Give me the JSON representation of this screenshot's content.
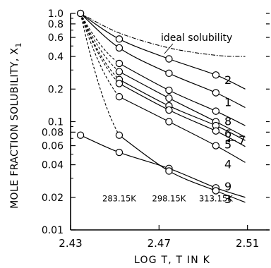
{
  "chart_data": {
    "type": "line",
    "title": "",
    "xlabel": "LOG T, T IN K",
    "ylabel": "MOLE FRACTION SOLUBILITY, X",
    "ylabel_sub": "1",
    "x_scale": "linear",
    "y_scale": "log",
    "xlim": [
      2.43,
      2.52
    ],
    "ylim": [
      0.01,
      1.0
    ],
    "x_ticks": [
      2.43,
      2.47,
      2.51
    ],
    "x_tick_labels": [
      "2.43",
      "2.47",
      "2.51"
    ],
    "y_ticks": [
      1.0,
      0.8,
      0.6,
      0.4,
      0.2,
      0.1,
      0.08,
      0.06,
      0.04,
      0.02,
      0.01
    ],
    "y_tick_labels": [
      "1.0",
      "0.8",
      "0.6",
      "0.4",
      "0.2",
      "0.1",
      "0.08",
      "0.06",
      "0.04",
      "0.02",
      "0.01"
    ],
    "grid": false,
    "annotations": [
      {
        "id": "ideal",
        "text": "ideal solubility"
      },
      {
        "id": "t1",
        "text": "283.15K",
        "x": 2.452,
        "y": 0.0195
      },
      {
        "id": "t2",
        "text": "298.15K",
        "x": 2.4745,
        "y": 0.0195
      },
      {
        "id": "t3",
        "text": "313.15K",
        "x": 2.4957,
        "y": 0.0195
      }
    ],
    "start_point": {
      "x": 2.4345,
      "y": 1.0
    },
    "series": [
      {
        "name": "ideal solubility",
        "style": "dashdot",
        "start": [
          2.4345,
          1.0
        ],
        "end": [
          2.509,
          0.4
        ],
        "points": [
          [
            2.452,
            0.66
          ],
          [
            2.4745,
            0.48
          ],
          [
            2.4957,
            0.41
          ]
        ],
        "markers": false
      },
      {
        "name": "2",
        "style": "solid",
        "label_y": 0.24,
        "start": [
          2.4345,
          1.0
        ],
        "end": [
          2.509,
          0.2
        ],
        "points": [
          [
            2.452,
            0.58
          ],
          [
            2.4745,
            0.38
          ],
          [
            2.4957,
            0.27
          ]
        ],
        "markers": true
      },
      {
        "name": "1",
        "style": "solid",
        "label_y": 0.15,
        "start": [
          2.4345,
          1.0
        ],
        "end": [
          2.509,
          0.135
        ],
        "points": [
          [
            2.452,
            0.48
          ],
          [
            2.4745,
            0.28
          ],
          [
            2.4957,
            0.185
          ]
        ],
        "markers": true
      },
      {
        "name": "8",
        "style": "dashed_solid",
        "label_y": 0.1,
        "start": [
          2.4345,
          1.0
        ],
        "end": [
          2.509,
          0.092
        ],
        "points": [
          [
            2.452,
            0.345
          ],
          [
            2.4745,
            0.195
          ],
          [
            2.4957,
            0.125
          ]
        ],
        "markers": true
      },
      {
        "name": "6",
        "style": "dashed_solid",
        "label_y": 0.077,
        "start": [
          2.4345,
          1.0
        ],
        "end": [
          2.509,
          0.072
        ],
        "points": [
          [
            2.452,
            0.29
          ],
          [
            2.4745,
            0.165
          ],
          [
            2.4957,
            0.1
          ]
        ],
        "markers": true
      },
      {
        "name": "7",
        "style": "dashed_solid",
        "label_y": 0.067,
        "start": [
          2.4345,
          1.0
        ],
        "end": [
          2.509,
          0.067
        ],
        "points": [
          [
            2.452,
            0.245
          ],
          [
            2.4745,
            0.14
          ],
          [
            2.4957,
            0.092
          ]
        ],
        "markers": true
      },
      {
        "name": "5",
        "style": "dashed_solid",
        "label_y": 0.061,
        "start": [
          2.4345,
          1.0
        ],
        "end": [
          2.509,
          0.059
        ],
        "points": [
          [
            2.452,
            0.225
          ],
          [
            2.4745,
            0.128
          ],
          [
            2.4957,
            0.082
          ]
        ],
        "markers": true
      },
      {
        "name": "4",
        "style": "dashed_solid",
        "label_y": 0.04,
        "start": [
          2.4345,
          1.0
        ],
        "end": [
          2.509,
          0.042
        ],
        "points": [
          [
            2.452,
            0.17
          ],
          [
            2.4745,
            0.1
          ],
          [
            2.4957,
            0.06
          ]
        ],
        "markers": true
      },
      {
        "name": "9",
        "style": "solid",
        "label_y": 0.025,
        "start": [
          2.4345,
          0.075
        ],
        "end": [
          2.509,
          0.02
        ],
        "points": [
          [
            2.452,
            0.052
          ],
          [
            2.4745,
            0.037
          ],
          [
            2.4957,
            0.0245
          ]
        ],
        "markers": true
      },
      {
        "name": "3",
        "style": "dashed_solid",
        "label_y": 0.019,
        "start": [
          2.4345,
          1.0
        ],
        "end": [
          2.509,
          0.018
        ],
        "points": [
          [
            2.452,
            0.075
          ],
          [
            2.4745,
            0.035
          ],
          [
            2.4957,
            0.023
          ]
        ],
        "markers": true
      }
    ]
  }
}
